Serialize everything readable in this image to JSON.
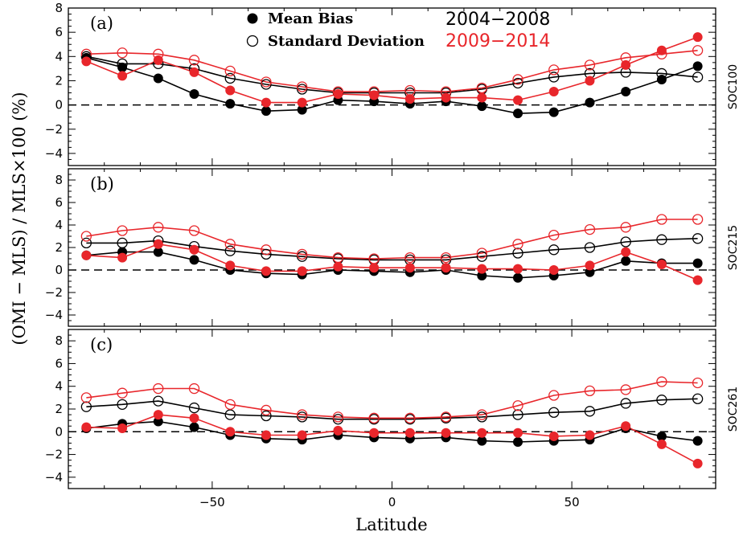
{
  "figure": {
    "ylabel": "(OMI − MLS) / MLS×100 (%)",
    "xlabel": "Latitude"
  },
  "legend": {
    "mean_bias_label": "Mean Bias",
    "std_label": "Standard Deviation",
    "period1_label": "2004−2008",
    "period2_label": "2009−2014",
    "period1_color": "#000000",
    "period2_color": "#e8262b"
  },
  "chart_data": [
    {
      "type": "line",
      "panel_label": "(a)",
      "right_label": "SOC100",
      "x": [
        -85,
        -75,
        -65,
        -55,
        -45,
        -35,
        -25,
        -15,
        -5,
        5,
        15,
        25,
        35,
        45,
        55,
        65,
        75,
        85
      ],
      "xlim": [
        -90,
        90
      ],
      "ylim": [
        -5,
        8
      ],
      "yticks": [
        -4,
        -2,
        0,
        2,
        4,
        6,
        8
      ],
      "xticks": [
        -50,
        0,
        50
      ],
      "zero_line": "dashed",
      "series": [
        {
          "name": "Mean Bias 2004−2008",
          "marker": "filled",
          "color": "#000000",
          "values": [
            3.9,
            3.1,
            2.2,
            0.9,
            0.1,
            -0.5,
            -0.4,
            0.4,
            0.3,
            0.1,
            0.3,
            -0.1,
            -0.7,
            -0.6,
            0.2,
            1.1,
            2.1,
            3.2
          ]
        },
        {
          "name": "Mean Bias 2009−2014",
          "marker": "filled",
          "color": "#e8262b",
          "values": [
            3.6,
            2.4,
            3.7,
            2.7,
            1.2,
            0.2,
            0.2,
            0.9,
            0.8,
            0.5,
            0.6,
            0.6,
            0.4,
            1.1,
            2.0,
            3.3,
            4.5,
            5.6
          ]
        },
        {
          "name": "Standard Deviation 2004−2008",
          "marker": "open",
          "color": "#000000",
          "values": [
            4.0,
            3.4,
            3.4,
            3.0,
            2.2,
            1.7,
            1.3,
            1.0,
            1.0,
            1.0,
            1.0,
            1.3,
            1.8,
            2.3,
            2.6,
            2.7,
            2.6,
            2.3
          ]
        },
        {
          "name": "Standard Deviation 2009−2014",
          "marker": "open",
          "color": "#e8262b",
          "values": [
            4.2,
            4.3,
            4.2,
            3.7,
            2.8,
            1.9,
            1.5,
            1.1,
            1.1,
            1.2,
            1.1,
            1.4,
            2.1,
            2.9,
            3.3,
            3.9,
            4.2,
            4.5
          ]
        }
      ]
    },
    {
      "type": "line",
      "panel_label": "(b)",
      "right_label": "SOC215",
      "x": [
        -85,
        -75,
        -65,
        -55,
        -45,
        -35,
        -25,
        -15,
        -5,
        5,
        15,
        25,
        35,
        45,
        55,
        65,
        75,
        85
      ],
      "xlim": [
        -90,
        90
      ],
      "ylim": [
        -5,
        9
      ],
      "yticks": [
        -4,
        -2,
        0,
        2,
        4,
        6,
        8
      ],
      "xticks": [
        -50,
        0,
        50
      ],
      "zero_line": "dashed",
      "series": [
        {
          "name": "Mean Bias 2004−2008",
          "marker": "filled",
          "color": "#000000",
          "values": [
            1.3,
            1.6,
            1.6,
            0.9,
            0.0,
            -0.3,
            -0.4,
            0.0,
            -0.1,
            -0.2,
            0.0,
            -0.5,
            -0.7,
            -0.5,
            -0.2,
            0.8,
            0.6,
            0.6
          ]
        },
        {
          "name": "Mean Bias 2009−2014",
          "marker": "filled",
          "color": "#e8262b",
          "values": [
            1.3,
            1.1,
            2.3,
            1.8,
            0.4,
            -0.1,
            -0.1,
            0.3,
            0.2,
            0.2,
            0.2,
            0.1,
            0.1,
            0.0,
            0.4,
            1.6,
            0.5,
            -0.9
          ]
        },
        {
          "name": "Standard Deviation 2004−2008",
          "marker": "open",
          "color": "#000000",
          "values": [
            2.4,
            2.4,
            2.6,
            2.1,
            1.7,
            1.4,
            1.2,
            1.0,
            0.9,
            0.9,
            0.9,
            1.2,
            1.5,
            1.8,
            2.0,
            2.5,
            2.7,
            2.8
          ]
        },
        {
          "name": "Standard Deviation 2009−2014",
          "marker": "open",
          "color": "#e8262b",
          "values": [
            3.0,
            3.5,
            3.8,
            3.5,
            2.3,
            1.8,
            1.4,
            1.1,
            1.0,
            1.1,
            1.1,
            1.5,
            2.3,
            3.1,
            3.6,
            3.8,
            4.5,
            4.5
          ]
        }
      ]
    },
    {
      "type": "line",
      "panel_label": "(c)",
      "right_label": "SOC261",
      "x": [
        -85,
        -75,
        -65,
        -55,
        -45,
        -35,
        -25,
        -15,
        -5,
        5,
        15,
        25,
        35,
        45,
        55,
        65,
        75,
        85
      ],
      "xlim": [
        -90,
        90
      ],
      "ylim": [
        -5,
        9
      ],
      "yticks": [
        -4,
        -2,
        0,
        2,
        4,
        6,
        8
      ],
      "xticks": [
        -50,
        0,
        50
      ],
      "zero_line": "dashed",
      "series": [
        {
          "name": "Mean Bias 2004−2008",
          "marker": "filled",
          "color": "#000000",
          "values": [
            0.3,
            0.7,
            0.9,
            0.4,
            -0.3,
            -0.6,
            -0.7,
            -0.3,
            -0.5,
            -0.6,
            -0.5,
            -0.8,
            -0.9,
            -0.8,
            -0.7,
            0.3,
            -0.4,
            -0.8
          ]
        },
        {
          "name": "Mean Bias 2009−2014",
          "marker": "filled",
          "color": "#e8262b",
          "values": [
            0.4,
            0.3,
            1.5,
            1.2,
            0.0,
            -0.3,
            -0.3,
            0.1,
            -0.1,
            -0.1,
            -0.1,
            -0.1,
            -0.1,
            -0.4,
            -0.3,
            0.5,
            -1.1,
            -2.8
          ]
        },
        {
          "name": "Standard Deviation 2004−2008",
          "marker": "open",
          "color": "#000000",
          "values": [
            2.2,
            2.4,
            2.7,
            2.1,
            1.5,
            1.4,
            1.3,
            1.1,
            1.1,
            1.1,
            1.2,
            1.3,
            1.5,
            1.7,
            1.8,
            2.5,
            2.8,
            2.9
          ]
        },
        {
          "name": "Standard Deviation 2009−2014",
          "marker": "open",
          "color": "#e8262b",
          "values": [
            3.0,
            3.4,
            3.8,
            3.8,
            2.4,
            1.9,
            1.5,
            1.3,
            1.2,
            1.2,
            1.3,
            1.5,
            2.3,
            3.2,
            3.6,
            3.7,
            4.4,
            4.3
          ]
        }
      ]
    }
  ]
}
